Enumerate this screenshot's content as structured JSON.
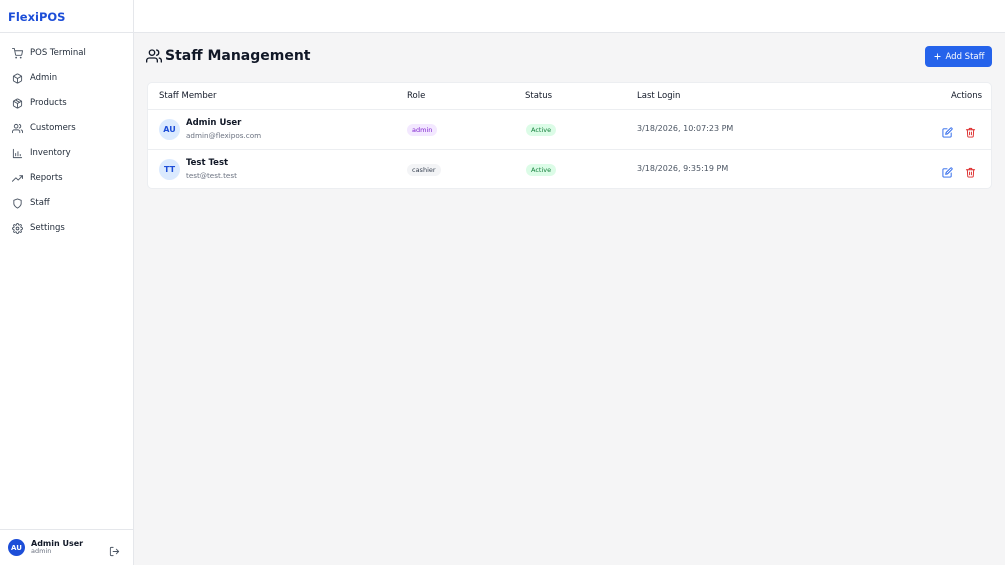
{
  "app": {
    "brand": "FlexiPOS"
  },
  "sidebar": {
    "items": [
      {
        "label": "POS Terminal",
        "icon": "cart-icon"
      },
      {
        "label": "Admin",
        "icon": "box-icon"
      },
      {
        "label": "Products",
        "icon": "package-icon"
      },
      {
        "label": "Customers",
        "icon": "users-icon"
      },
      {
        "label": "Inventory",
        "icon": "bar-chart-icon"
      },
      {
        "label": "Reports",
        "icon": "trending-up-icon"
      },
      {
        "label": "Staff",
        "icon": "shield-icon"
      },
      {
        "label": "Settings",
        "icon": "gear-icon"
      }
    ],
    "user": {
      "initials": "AU",
      "name": "Admin User",
      "role": "admin"
    }
  },
  "page": {
    "title": "Staff Management",
    "add_button": "Add Staff"
  },
  "table": {
    "columns": [
      "Staff Member",
      "Role",
      "Status",
      "Last Login",
      "Actions"
    ],
    "rows": [
      {
        "initials": "AU",
        "name": "Admin User",
        "email": "admin@flexipos.com",
        "role": "admin",
        "status": "Active",
        "last_login": "3/18/2026, 10:07:23 PM"
      },
      {
        "initials": "TT",
        "name": "Test Test",
        "email": "test@test.test",
        "role": "cashier",
        "status": "Active",
        "last_login": "3/18/2026, 9:35:19 PM"
      }
    ]
  },
  "colors": {
    "brand": "#1d4ed8",
    "primary_button": "#2563eb",
    "admin_badge": "#f3e8ff",
    "cashier_badge": "#f3f4f6",
    "active_badge": "#dcfce7",
    "delete": "#dc2626"
  }
}
